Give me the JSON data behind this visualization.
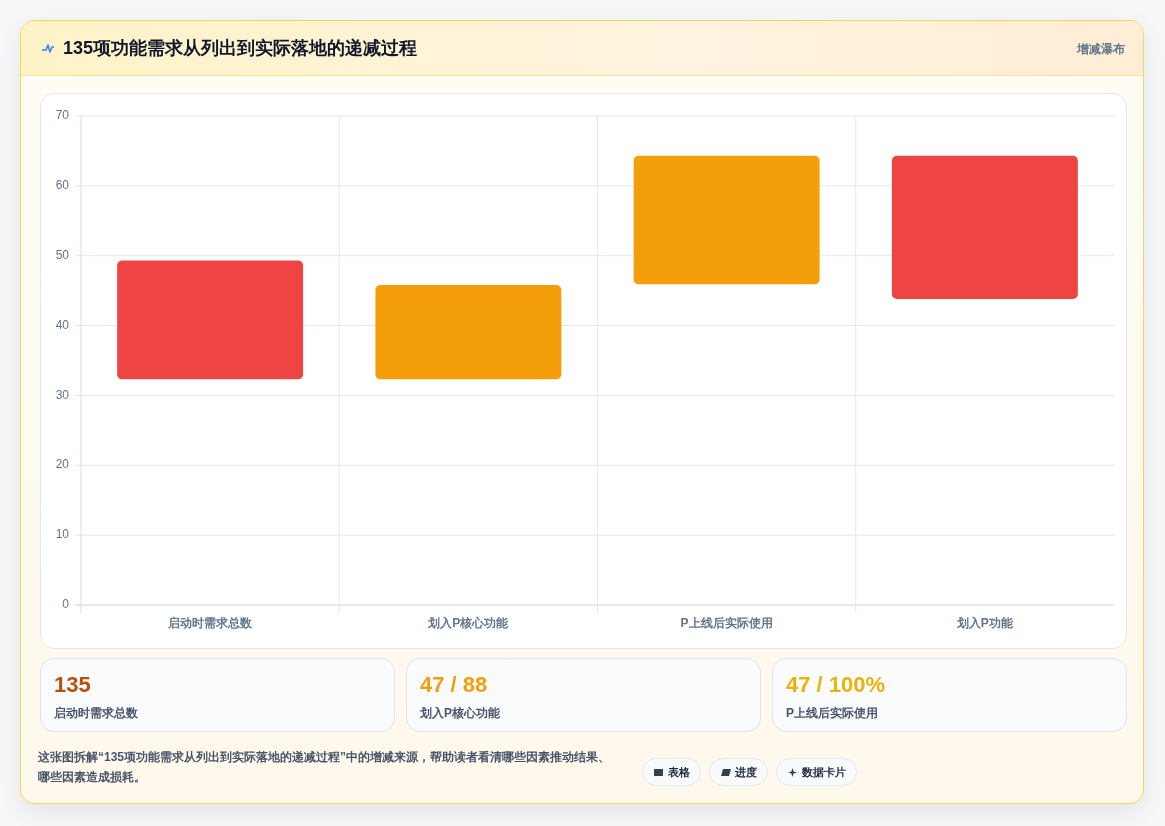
{
  "chart_data": [
    {
      "type": "bar",
      "title": "135项功能需求从列出到实际落地的递减过程",
      "subtitle": "增减瀑布",
      "categories": [
        "启动时需求总数",
        "划入P核心功能",
        "P上线后实际使用",
        "划入P功能"
      ],
      "base": [
        32.3,
        32.3,
        45.9,
        43.8
      ],
      "values": [
        17,
        13.5,
        18.4,
        20.5
      ],
      "colors": [
        "#ef4444",
        "#f59e0b",
        "#f59e0b",
        "#ef4444"
      ],
      "ylim": [
        0,
        70
      ],
      "yticks": [
        0,
        10,
        20,
        30,
        40,
        50,
        60,
        70
      ],
      "grid": true,
      "annotations": [
        "这张图拆解“135项功能需求从列出到实际落地的递减过程”中的增减来源，帮助读者看清哪些因素推动结果、哪些因素造成损耗。"
      ]
    },
    {
      "type": "other",
      "annotations": [
        "135",
        "启动时需求总数",
        "47 / 88",
        "划入P核心功能",
        "47 / 100%",
        "P上线后实际使用"
      ]
    },
    {
      "type": "other",
      "annotations": [
        "表格",
        "进度",
        "数据卡片"
      ]
    }
  ]
}
